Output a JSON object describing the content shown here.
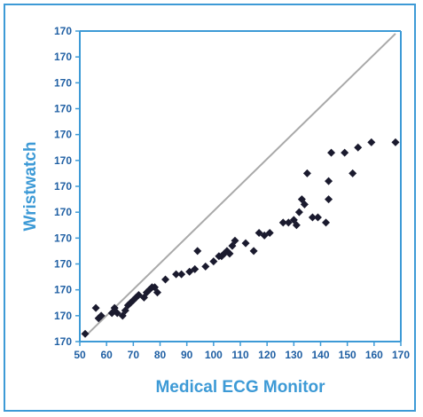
{
  "chart_data": {
    "type": "scatter",
    "title": "",
    "xlabel": "Medical ECG Monitor",
    "ylabel": "Wristwatch",
    "xlim": [
      50,
      170
    ],
    "ylim": [
      50,
      170
    ],
    "x_ticks": [
      "50",
      "60",
      "70",
      "80",
      "90",
      "100",
      "110",
      "120",
      "130",
      "140",
      "150",
      "160",
      "170"
    ],
    "y_tick_labels": [
      "170",
      "170",
      "170",
      "170",
      "170",
      "170",
      "170",
      "170",
      "170",
      "170",
      "170",
      "170",
      "170"
    ],
    "grid": false,
    "legend": "none",
    "trendline": {
      "x": [
        52,
        168
      ],
      "y": [
        52,
        169
      ]
    },
    "series": [
      {
        "x": [
          52,
          56,
          57,
          58,
          62,
          63,
          64,
          66,
          67,
          68,
          69,
          70,
          71,
          72,
          74,
          75,
          76,
          77,
          78,
          79,
          82,
          86,
          88,
          91,
          93,
          94,
          97,
          100,
          102,
          103,
          104,
          105,
          106,
          107,
          108,
          112,
          115,
          117,
          119,
          121,
          126,
          128,
          130,
          131,
          132,
          133,
          134,
          135,
          137,
          139,
          142,
          143,
          143,
          144,
          149,
          152,
          154,
          159,
          168
        ],
        "y": [
          53,
          63,
          59,
          60,
          61,
          63,
          61,
          60,
          62,
          64,
          65,
          66,
          67,
          68,
          67,
          69,
          70,
          71,
          71,
          69,
          74,
          76,
          76,
          77,
          78,
          85,
          79,
          81,
          83,
          83,
          84,
          85,
          84,
          87,
          89,
          88,
          85,
          92,
          91,
          92,
          96,
          96,
          97,
          95,
          100,
          105,
          103,
          115,
          98,
          98,
          96,
          105,
          112,
          123,
          123,
          115,
          125,
          127,
          127
        ]
      }
    ]
  },
  "colors": {
    "frame": "#3d9ad6",
    "axis": "#3d9ad6",
    "tick_text": "#1f5fa3",
    "title_text": "#3d9ad6",
    "marker": "#1a1a2e",
    "trendline": "#a9a9a9"
  }
}
